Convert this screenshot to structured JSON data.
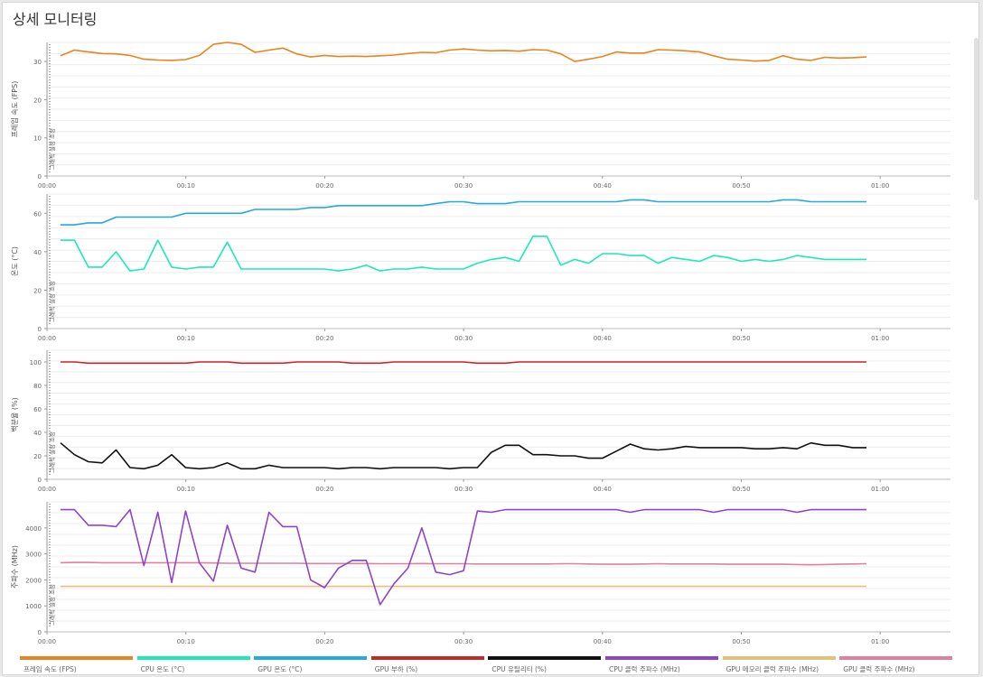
{
  "page": {
    "title": "상세 모니터링"
  },
  "chart_data": [
    {
      "type": "line",
      "ylabel": "프레임 속도 (FPS)",
      "yticks": [
        "0",
        "10",
        "20",
        "30"
      ],
      "ylim": [
        0,
        35
      ],
      "side_label": "그래픽 설정 조정",
      "x_ticks": [
        "00:00",
        "00:10",
        "00:20",
        "00:30",
        "00:40",
        "00:50",
        "01:00"
      ],
      "series": [
        {
          "name": "프레임 속도 (FPS)",
          "color": "#e8841e",
          "values": [
            31.5,
            33,
            32.5,
            32.1,
            32,
            31.6,
            30.6,
            30.4,
            30.3,
            30.5,
            31.6,
            34.5,
            35,
            34.5,
            32.4,
            33,
            33.5,
            32,
            31.2,
            31.6,
            31.3,
            31.4,
            31.3,
            31.5,
            31.7,
            32.1,
            32.4,
            32.3,
            33,
            33.3,
            33,
            32.8,
            32.9,
            32.7,
            33.1,
            33,
            32,
            30,
            30.6,
            31.3,
            32.5,
            32.2,
            32.2,
            33.1,
            33,
            32.8,
            32.5,
            31.5,
            30.6,
            30.4,
            30.1,
            30.3,
            31.5,
            30.6,
            30.3,
            31.1,
            30.9,
            31,
            31.2
          ]
        }
      ]
    },
    {
      "type": "line",
      "ylabel": "온도 (°C)",
      "yticks": [
        "0",
        "20",
        "40",
        "60"
      ],
      "ylim": [
        0,
        70
      ],
      "side_label": "그래픽 설정 조정",
      "x_ticks": [
        "00:00",
        "00:10",
        "00:20",
        "00:30",
        "00:40",
        "00:50",
        "01:00"
      ],
      "series": [
        {
          "name": "CPU 온도 (°C)",
          "color": "#1de9b6",
          "values": [
            46,
            46,
            32,
            32,
            40,
            30,
            31,
            46,
            32,
            31,
            32,
            32,
            45,
            31,
            31,
            31,
            31,
            31,
            31,
            31,
            30,
            31,
            33,
            30,
            31,
            31,
            32,
            31,
            31,
            31,
            34,
            36,
            37,
            35,
            48,
            48,
            33,
            36,
            34,
            39,
            39,
            38,
            38,
            34,
            37,
            36,
            35,
            38,
            37,
            35,
            36,
            35,
            36,
            38,
            37,
            36,
            36,
            36,
            36
          ]
        },
        {
          "name": "GPU 온도 (°C)",
          "color": "#24a9e1",
          "values": [
            54,
            54,
            55,
            55,
            58,
            58,
            58,
            58,
            58,
            60,
            60,
            60,
            60,
            60,
            62,
            62,
            62,
            62,
            63,
            63,
            64,
            64,
            64,
            64,
            64,
            64,
            64,
            65,
            66,
            66,
            65,
            65,
            65,
            66,
            66,
            66,
            66,
            66,
            66,
            66,
            66,
            67,
            67,
            66,
            66,
            66,
            66,
            66,
            66,
            66,
            66,
            66,
            67,
            67,
            66,
            66,
            66,
            66,
            66
          ]
        }
      ]
    },
    {
      "type": "line",
      "ylabel": "백분율 (%)",
      "yticks": [
        "0",
        "20",
        "40",
        "60",
        "80",
        "100"
      ],
      "ylim": [
        0,
        110
      ],
      "side_label": "그래픽 설정 조정",
      "x_ticks": [
        "00:00",
        "00:10",
        "00:20",
        "00:30",
        "00:40",
        "00:50",
        "01:00"
      ],
      "series": [
        {
          "name": "GPU 부하 (%)",
          "color": "#c62828",
          "values": [
            100,
            100,
            99,
            99,
            99,
            99,
            99,
            99,
            99,
            99,
            100,
            100,
            100,
            99,
            99,
            99,
            99,
            100,
            100,
            100,
            100,
            99,
            99,
            99,
            100,
            100,
            100,
            100,
            100,
            100,
            99,
            99,
            99,
            100,
            100,
            100,
            100,
            100,
            100,
            100,
            100,
            100,
            100,
            100,
            100,
            100,
            100,
            100,
            100,
            100,
            100,
            100,
            100,
            100,
            100,
            100,
            100,
            100,
            100
          ]
        },
        {
          "name": "CPU 유틸리티 (%)",
          "color": "#111111",
          "values": [
            31,
            21,
            15,
            14,
            25,
            10,
            9,
            12,
            21,
            10,
            9,
            10,
            14,
            9,
            9,
            12,
            10,
            10,
            10,
            10,
            9,
            10,
            10,
            9,
            10,
            10,
            10,
            10,
            9,
            10,
            10,
            23,
            29,
            29,
            21,
            21,
            20,
            20,
            18,
            18,
            24,
            30,
            26,
            25,
            26,
            28,
            27,
            27,
            27,
            27,
            26,
            26,
            27,
            26,
            31,
            29,
            29,
            27,
            27
          ]
        }
      ]
    },
    {
      "type": "line",
      "ylabel": "주파수 (MHz)",
      "yticks": [
        "0",
        "1000",
        "2000",
        "3000",
        "4000"
      ],
      "ylim": [
        0,
        5000
      ],
      "side_label": "그래픽 설정 조정",
      "x_ticks": [
        "00:00",
        "00:10",
        "00:20",
        "00:30",
        "00:40",
        "00:50",
        "01:00"
      ],
      "series": [
        {
          "name": "GPU 메모리 클럭 주파수 (MHz)",
          "color": "#e6c07b",
          "values": [
            1750,
            1750,
            1750,
            1750,
            1750,
            1750,
            1750,
            1750,
            1750,
            1750,
            1750,
            1750,
            1750,
            1750,
            1750,
            1750,
            1750,
            1750,
            1750,
            1750,
            1750,
            1750,
            1750,
            1750,
            1750,
            1750,
            1750,
            1750,
            1750,
            1750,
            1750,
            1750,
            1750,
            1750,
            1750,
            1750,
            1750,
            1750,
            1750,
            1750,
            1750,
            1750,
            1750,
            1750,
            1750,
            1750,
            1750,
            1750,
            1750,
            1750,
            1750,
            1750,
            1750,
            1750,
            1750,
            1750,
            1750,
            1750,
            1750
          ]
        },
        {
          "name": "GPU 클럭 주파수 (MHz)",
          "color": "#e07fa0",
          "values": [
            2660,
            2670,
            2670,
            2660,
            2660,
            2660,
            2660,
            2660,
            2660,
            2660,
            2660,
            2650,
            2640,
            2640,
            2640,
            2640,
            2640,
            2640,
            2630,
            2630,
            2630,
            2630,
            2630,
            2620,
            2620,
            2620,
            2630,
            2620,
            2620,
            2620,
            2610,
            2610,
            2610,
            2610,
            2610,
            2610,
            2620,
            2620,
            2610,
            2600,
            2600,
            2600,
            2610,
            2620,
            2610,
            2610,
            2610,
            2610,
            2600,
            2600,
            2600,
            2600,
            2600,
            2590,
            2580,
            2590,
            2600,
            2610,
            2620
          ]
        },
        {
          "name": "CPU 클럭 주파수 (MHz)",
          "color": "#8e44c7",
          "values": [
            4700,
            4700,
            4100,
            4100,
            4050,
            4700,
            2550,
            4600,
            1900,
            4650,
            2650,
            1950,
            4100,
            2450,
            2300,
            4600,
            4050,
            4050,
            2000,
            1700,
            2450,
            2750,
            2750,
            1050,
            1850,
            2450,
            4000,
            2300,
            2200,
            2350,
            4650,
            4600,
            4700,
            4700,
            4700,
            4700,
            4700,
            4700,
            4700,
            4700,
            4700,
            4600,
            4700,
            4700,
            4700,
            4700,
            4700,
            4600,
            4700,
            4700,
            4700,
            4700,
            4700,
            4600,
            4700,
            4700,
            4700,
            4700,
            4700
          ]
        }
      ]
    }
  ],
  "legend": [
    {
      "label": "프레임 속도 (FPS)",
      "color": "#e8841e"
    },
    {
      "label": "CPU 온도 (°C)",
      "color": "#1de9b6"
    },
    {
      "label": "GPU 온도 (°C)",
      "color": "#24a9e1"
    },
    {
      "label": "GPU 부하 (%)",
      "color": "#c62828"
    },
    {
      "label": "CPU 유틸리티 (%)",
      "color": "#111111"
    },
    {
      "label": "CPU 클럭 주파수 (MHz)",
      "color": "#8e44c7"
    },
    {
      "label": "GPU 메모리 클럭 주파수 (MHz)",
      "color": "#e6c07b"
    },
    {
      "label": "GPU 클럭 주파수 (MHz)",
      "color": "#e07fa0"
    }
  ]
}
